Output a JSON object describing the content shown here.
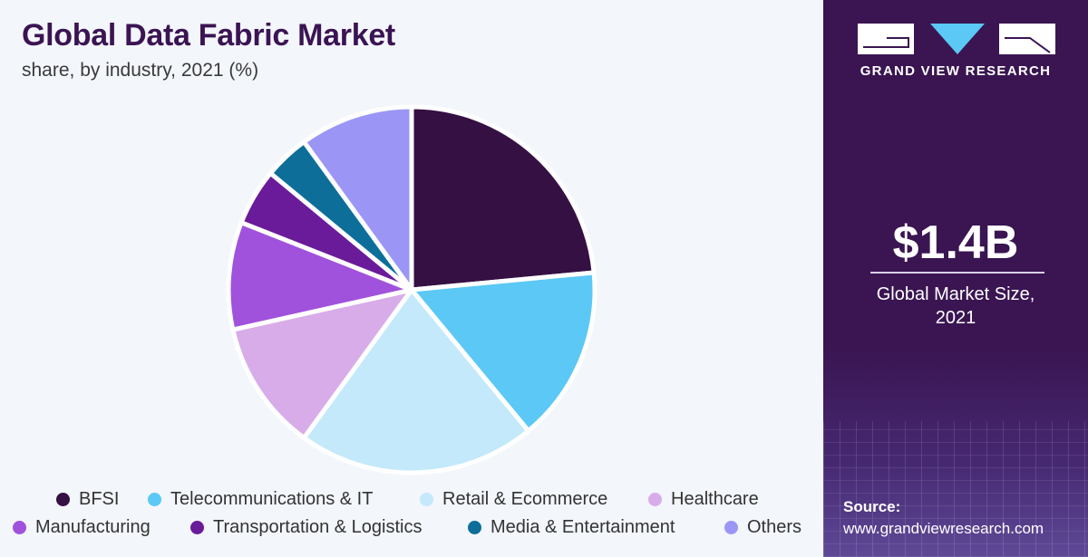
{
  "header": {
    "title": "Global Data Fabric Market",
    "subtitle": "share, by industry, 2021 (%)"
  },
  "chart_data": {
    "type": "pie",
    "title": "Global Data Fabric Market",
    "subtitle": "share, by industry, 2021 (%)",
    "legend_position": "bottom",
    "slices": [
      {
        "name": "BFSI",
        "value": 23.5,
        "color": "#351043"
      },
      {
        "name": "Telecommunications & IT",
        "value": 15.5,
        "color": "#5bc8f5"
      },
      {
        "name": "Retail & Ecommerce",
        "value": 21.0,
        "color": "#c3e9fb"
      },
      {
        "name": "Healthcare",
        "value": 11.5,
        "color": "#d8ace9"
      },
      {
        "name": "Manufacturing",
        "value": 9.5,
        "color": "#a152dc"
      },
      {
        "name": "Transportation & Logistics",
        "value": 5.0,
        "color": "#6a1b9a"
      },
      {
        "name": "Media & Entertainment",
        "value": 4.0,
        "color": "#0d6f99"
      },
      {
        "name": "Others",
        "value": 10.0,
        "color": "#9b96f5"
      }
    ]
  },
  "sidebar": {
    "brand": "GRAND VIEW RESEARCH",
    "market_size": "$1.4B",
    "market_label_line1": "Global Market Size,",
    "market_label_line2": "2021",
    "source_label": "Source:",
    "source_url": "www.grandviewresearch.com"
  },
  "colors": {
    "title": "#3b1453",
    "sidebar_bg": "#3a1552",
    "logo_accent": "#5bc8f5"
  }
}
